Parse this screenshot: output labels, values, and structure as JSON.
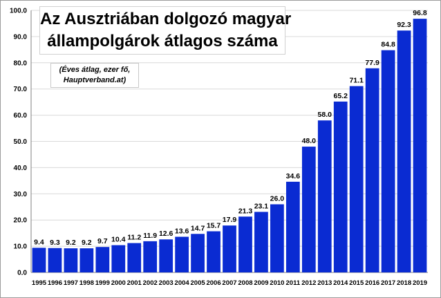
{
  "chart_data": {
    "type": "bar",
    "title_lines": [
      "Az Ausztriában dolgozó magyar",
      "állampolgárok átlagos száma"
    ],
    "subtitle_lines": [
      "(Éves átlag, ezer fő,",
      "Hauptverband.at)"
    ],
    "categories": [
      "1995",
      "1996",
      "1997",
      "1998",
      "1999",
      "2000",
      "2001",
      "2002",
      "2003",
      "2004",
      "2005",
      "2006",
      "2007",
      "2008",
      "2009",
      "2010",
      "2011",
      "2012",
      "2013",
      "2014",
      "2015",
      "2016",
      "2017",
      "2018",
      "2019"
    ],
    "values": [
      9.4,
      9.3,
      9.2,
      9.2,
      9.7,
      10.4,
      11.2,
      11.9,
      12.6,
      13.6,
      14.7,
      15.7,
      17.9,
      21.3,
      23.1,
      26.0,
      34.6,
      48.0,
      58.0,
      65.2,
      71.1,
      77.9,
      84.8,
      92.3,
      96.8
    ],
    "data_labels": [
      "9.4",
      "9.3",
      "9.2",
      "9.2",
      "9.7",
      "10.4",
      "11.2",
      "11.9",
      "12.6",
      "13.6",
      "14.7",
      "15.7",
      "17.9",
      "21.3",
      "23.1",
      "26.0",
      "34.6",
      "48.0",
      "58.0",
      "65.2",
      "71.1",
      "77.9",
      "84.8",
      "92.3",
      "96.8"
    ],
    "y_ticks": [
      "0.0",
      "10.0",
      "20.0",
      "30.0",
      "40.0",
      "50.0",
      "60.0",
      "70.0",
      "80.0",
      "90.0",
      "100.0"
    ],
    "ylim": [
      0,
      100
    ],
    "xlabel": "",
    "ylabel": "",
    "grid": true,
    "bar_color": "#0a2bd2",
    "grid_color": "#d9d9d9"
  }
}
